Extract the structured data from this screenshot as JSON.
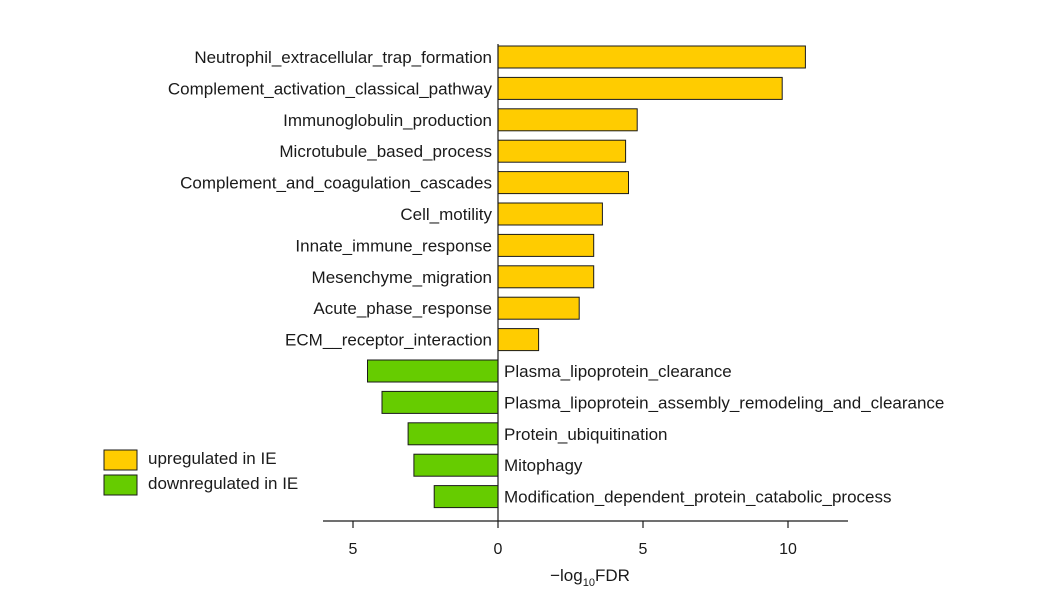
{
  "chart_data": {
    "type": "bar",
    "orientation": "horizontal",
    "title": "",
    "xlabel_parts": [
      "−log",
      "10",
      "FDR"
    ],
    "ylabel": "",
    "xlim": [
      -6,
      12
    ],
    "x_ticks": [
      {
        "value": -5,
        "label": "5"
      },
      {
        "value": 0,
        "label": "0"
      },
      {
        "value": 5,
        "label": "5"
      },
      {
        "value": 10,
        "label": "10"
      }
    ],
    "legend": {
      "position": "bottom-left",
      "entries": [
        {
          "name": "upregulated in IE",
          "color": "#FFCC00"
        },
        {
          "name": "downregulated in IE",
          "color": "#66CC00"
        }
      ]
    },
    "series": [
      {
        "name": "upregulated in IE",
        "color": "#FFCC00",
        "categories": [
          "Neutrophil_extracellular_trap_formation",
          "Complement_activation_classical_pathway",
          "Immunoglobulin_production",
          "Microtubule_based_process",
          "Complement_and_coagulation_cascades",
          "Cell_motility",
          "Innate_immune_response",
          "Mesenchyme_migration",
          "Acute_phase_response",
          "ECM__receptor_interaction"
        ],
        "values": [
          10.6,
          9.8,
          4.8,
          4.4,
          4.5,
          3.6,
          3.3,
          3.3,
          2.8,
          1.4
        ]
      },
      {
        "name": "downregulated in IE",
        "color": "#66CC00",
        "categories": [
          "Plasma_lipoprotein_clearance",
          "Plasma_lipoprotein_assembly_remodeling_and_clearance",
          "Protein_ubiquitination",
          "Mitophagy",
          "Modification_dependent_protein_catabolic_process"
        ],
        "values": [
          4.5,
          4.0,
          3.1,
          2.9,
          2.2
        ]
      }
    ]
  }
}
